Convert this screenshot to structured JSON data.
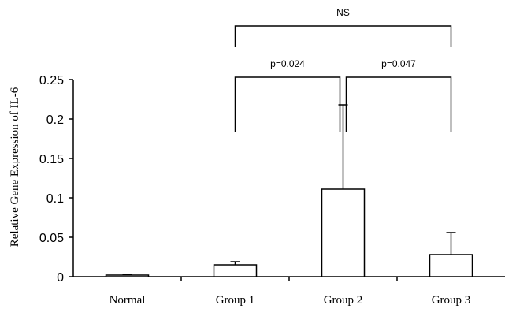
{
  "chart_data": {
    "type": "bar",
    "title": "",
    "xlabel": "",
    "ylabel": "Relative Gene Expression of IL-6",
    "categories": [
      "Normal",
      "Group 1",
      "Group 2",
      "Group 3"
    ],
    "values": [
      0.002,
      0.015,
      0.111,
      0.028
    ],
    "errors": [
      0.001,
      0.004,
      0.107,
      0.028
    ],
    "ylim": [
      0,
      0.25
    ],
    "yticks": [
      0,
      0.05,
      0.1,
      0.15,
      0.2,
      0.25
    ],
    "ytick_labels": [
      "0",
      "0.05",
      "0.1",
      "0.15",
      "0.2",
      "0.25"
    ],
    "grid": false,
    "legend": "none",
    "bar_color": "#ffffff",
    "edge_color": "#000000",
    "annotations": [
      {
        "from": "Group 1",
        "to": "Group 2",
        "label": "p=0.024",
        "level": 1
      },
      {
        "from": "Group 2",
        "to": "Group 3",
        "label": "p=0.047",
        "level": 1
      },
      {
        "from": "Group 1",
        "to": "Group 3",
        "label": "NS",
        "level": 2
      }
    ]
  }
}
